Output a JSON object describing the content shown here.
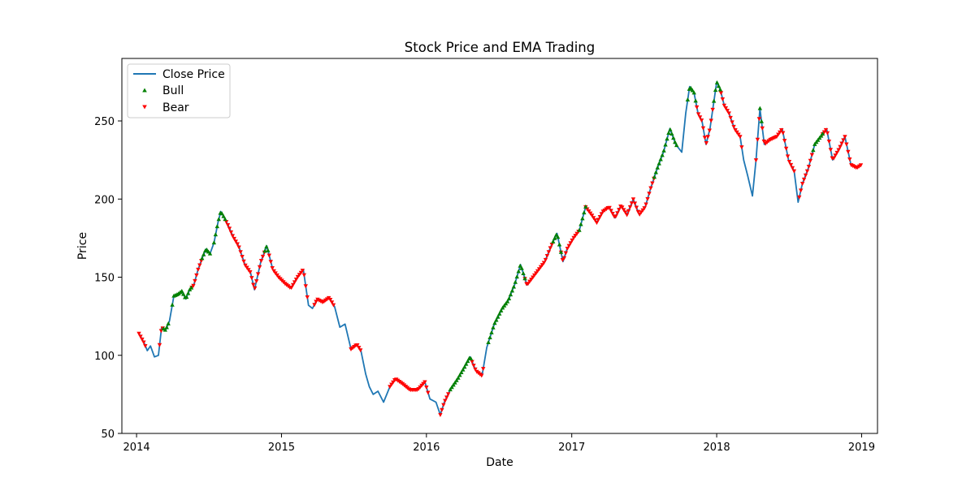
{
  "chart_data": {
    "type": "line",
    "title": "Stock Price and EMA Trading",
    "xlabel": "Date",
    "ylabel": "Price",
    "xlim": [
      "2013-11-25",
      "2019-02-10"
    ],
    "ylim": [
      50,
      290
    ],
    "x_ticks": [
      "2014",
      "2015",
      "2016",
      "2017",
      "2018",
      "2019"
    ],
    "y_ticks": [
      50,
      100,
      150,
      200,
      250
    ],
    "legend": {
      "placement": "upper-left",
      "entries": [
        "Close Price",
        "Bull",
        "Bear"
      ]
    },
    "colors": {
      "close": "#1f77b4",
      "bull": "#008000",
      "bear": "#ff0000"
    },
    "close_price": {
      "name": "Close Price",
      "points": [
        [
          "2014-01-07",
          114
        ],
        [
          "2014-01-20",
          108
        ],
        [
          "2014-01-28",
          103
        ],
        [
          "2014-02-05",
          106
        ],
        [
          "2014-02-15",
          99
        ],
        [
          "2014-02-25",
          100
        ],
        [
          "2014-03-05",
          118
        ],
        [
          "2014-03-15",
          116
        ],
        [
          "2014-03-25",
          122
        ],
        [
          "2014-04-05",
          138
        ],
        [
          "2014-04-15",
          139
        ],
        [
          "2014-04-25",
          141
        ],
        [
          "2014-05-05",
          136
        ],
        [
          "2014-05-15",
          142
        ],
        [
          "2014-05-25",
          145
        ],
        [
          "2014-06-05",
          155
        ],
        [
          "2014-06-15",
          162
        ],
        [
          "2014-06-25",
          168
        ],
        [
          "2014-07-05",
          165
        ],
        [
          "2014-07-15",
          172
        ],
        [
          "2014-07-25",
          185
        ],
        [
          "2014-08-01",
          192
        ],
        [
          "2014-08-10",
          188
        ],
        [
          "2014-08-20",
          183
        ],
        [
          "2014-09-01",
          176
        ],
        [
          "2014-09-15",
          170
        ],
        [
          "2014-10-01",
          158
        ],
        [
          "2014-10-15",
          153
        ],
        [
          "2014-10-25",
          142
        ],
        [
          "2014-11-10",
          160
        ],
        [
          "2014-11-25",
          170
        ],
        [
          "2014-12-10",
          155
        ],
        [
          "2014-12-25",
          150
        ],
        [
          "2015-01-10",
          146
        ],
        [
          "2015-01-25",
          143
        ],
        [
          "2015-02-10",
          150
        ],
        [
          "2015-02-25",
          155
        ],
        [
          "2015-03-10",
          132
        ],
        [
          "2015-03-20",
          130
        ],
        [
          "2015-04-01",
          136
        ],
        [
          "2015-04-15",
          134
        ],
        [
          "2015-05-01",
          137
        ],
        [
          "2015-05-15",
          131
        ],
        [
          "2015-05-28",
          118
        ],
        [
          "2015-06-10",
          120
        ],
        [
          "2015-06-25",
          104
        ],
        [
          "2015-07-10",
          107
        ],
        [
          "2015-07-20",
          103
        ],
        [
          "2015-08-01",
          88
        ],
        [
          "2015-08-10",
          80
        ],
        [
          "2015-08-20",
          75
        ],
        [
          "2015-09-01",
          77
        ],
        [
          "2015-09-15",
          70
        ],
        [
          "2015-10-01",
          80
        ],
        [
          "2015-10-15",
          85
        ],
        [
          "2015-11-01",
          82
        ],
        [
          "2015-11-20",
          78
        ],
        [
          "2015-12-10",
          78
        ],
        [
          "2015-12-28",
          83
        ],
        [
          "2016-01-10",
          72
        ],
        [
          "2016-01-25",
          70
        ],
        [
          "2016-02-05",
          62
        ],
        [
          "2016-02-15",
          70
        ],
        [
          "2016-03-01",
          78
        ],
        [
          "2016-03-20",
          85
        ],
        [
          "2016-04-05",
          92
        ],
        [
          "2016-04-20",
          99
        ],
        [
          "2016-05-05",
          90
        ],
        [
          "2016-05-20",
          87
        ],
        [
          "2016-06-01",
          105
        ],
        [
          "2016-06-20",
          120
        ],
        [
          "2016-07-10",
          130
        ],
        [
          "2016-07-25",
          135
        ],
        [
          "2016-08-10",
          145
        ],
        [
          "2016-08-25",
          158
        ],
        [
          "2016-09-10",
          145
        ],
        [
          "2016-09-25",
          150
        ],
        [
          "2016-10-10",
          155
        ],
        [
          "2016-10-25",
          160
        ],
        [
          "2016-11-10",
          170
        ],
        [
          "2016-11-25",
          178
        ],
        [
          "2016-12-10",
          160
        ],
        [
          "2016-12-20",
          168
        ],
        [
          "2017-01-05",
          175
        ],
        [
          "2017-01-20",
          180
        ],
        [
          "2017-02-05",
          195
        ],
        [
          "2017-02-20",
          190
        ],
        [
          "2017-03-05",
          185
        ],
        [
          "2017-03-20",
          192
        ],
        [
          "2017-04-05",
          195
        ],
        [
          "2017-04-20",
          188
        ],
        [
          "2017-05-05",
          196
        ],
        [
          "2017-05-20",
          190
        ],
        [
          "2017-06-05",
          200
        ],
        [
          "2017-06-20",
          190
        ],
        [
          "2017-07-05",
          195
        ],
        [
          "2017-07-20",
          208
        ],
        [
          "2017-08-05",
          220
        ],
        [
          "2017-08-20",
          230
        ],
        [
          "2017-09-05",
          245
        ],
        [
          "2017-09-20",
          235
        ],
        [
          "2017-10-05",
          230
        ],
        [
          "2017-10-15",
          255
        ],
        [
          "2017-10-25",
          272
        ],
        [
          "2017-11-05",
          268
        ],
        [
          "2017-11-15",
          255
        ],
        [
          "2017-11-25",
          250
        ],
        [
          "2017-12-05",
          235
        ],
        [
          "2017-12-15",
          245
        ],
        [
          "2018-01-01",
          275
        ],
        [
          "2018-01-10",
          270
        ],
        [
          "2018-01-20",
          260
        ],
        [
          "2018-02-01",
          255
        ],
        [
          "2018-02-15",
          245
        ],
        [
          "2018-03-01",
          240
        ],
        [
          "2018-03-10",
          225
        ],
        [
          "2018-03-20",
          215
        ],
        [
          "2018-04-01",
          202
        ],
        [
          "2018-04-10",
          225
        ],
        [
          "2018-04-20",
          258
        ],
        [
          "2018-05-01",
          235
        ],
        [
          "2018-05-15",
          238
        ],
        [
          "2018-06-01",
          240
        ],
        [
          "2018-06-15",
          245
        ],
        [
          "2018-07-01",
          225
        ],
        [
          "2018-07-15",
          218
        ],
        [
          "2018-07-25",
          198
        ],
        [
          "2018-08-05",
          210
        ],
        [
          "2018-08-20",
          220
        ],
        [
          "2018-09-05",
          235
        ],
        [
          "2018-09-20",
          240
        ],
        [
          "2018-10-05",
          245
        ],
        [
          "2018-10-20",
          225
        ],
        [
          "2018-11-05",
          232
        ],
        [
          "2018-11-20",
          240
        ],
        [
          "2018-12-05",
          222
        ],
        [
          "2018-12-20",
          220
        ],
        [
          "2018-12-31",
          222
        ]
      ]
    },
    "signals": {
      "bull_periods": [
        [
          "2014-03-10",
          "2014-03-25"
        ],
        [
          "2014-04-01",
          "2014-05-20"
        ],
        [
          "2014-06-15",
          "2014-07-05"
        ],
        [
          "2014-07-15",
          "2014-08-15"
        ],
        [
          "2014-11-20",
          "2014-12-01"
        ],
        [
          "2016-03-01",
          "2016-04-25"
        ],
        [
          "2016-06-05",
          "2016-09-05"
        ],
        [
          "2016-11-15",
          "2016-12-05"
        ],
        [
          "2017-01-20",
          "2017-02-05"
        ],
        [
          "2017-07-28",
          "2017-09-25"
        ],
        [
          "2017-10-20",
          "2017-11-12"
        ],
        [
          "2017-12-25",
          "2018-01-12"
        ],
        [
          "2018-04-20",
          "2018-04-26"
        ],
        [
          "2018-09-01",
          "2018-09-25"
        ]
      ],
      "bear_periods": [
        [
          "2014-01-07",
          "2014-01-25"
        ],
        [
          "2014-02-28",
          "2014-03-08"
        ],
        [
          "2014-05-20",
          "2014-06-15"
        ],
        [
          "2014-08-15",
          "2014-11-20"
        ],
        [
          "2014-12-01",
          "2015-03-10"
        ],
        [
          "2015-03-25",
          "2015-05-15"
        ],
        [
          "2015-06-25",
          "2015-07-20"
        ],
        [
          "2015-10-01",
          "2016-01-05"
        ],
        [
          "2016-02-05",
          "2016-02-28"
        ],
        [
          "2016-04-25",
          "2016-05-25"
        ],
        [
          "2016-09-05",
          "2016-11-15"
        ],
        [
          "2016-12-05",
          "2017-01-20"
        ],
        [
          "2017-02-05",
          "2017-07-28"
        ],
        [
          "2017-11-12",
          "2017-12-25"
        ],
        [
          "2018-01-12",
          "2018-03-05"
        ],
        [
          "2018-04-10",
          "2018-04-20"
        ],
        [
          "2018-04-26",
          "2018-07-15"
        ],
        [
          "2018-07-28",
          "2018-09-01"
        ],
        [
          "2018-09-25",
          "2018-12-31"
        ]
      ]
    }
  }
}
